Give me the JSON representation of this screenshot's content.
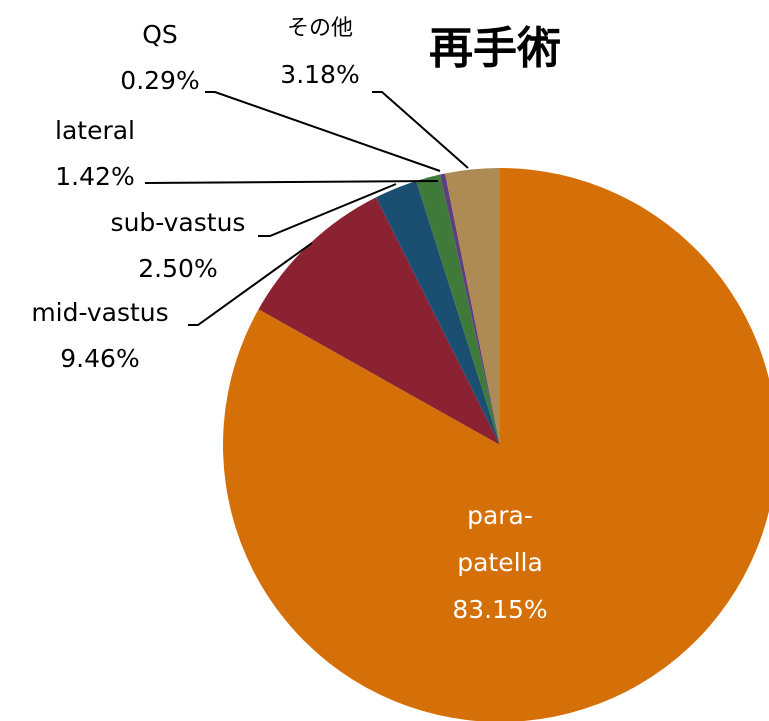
{
  "chart_data": {
    "type": "pie",
    "title": "再手術",
    "categories": [
      "para-patella",
      "mid-vastus",
      "sub-vastus",
      "lateral",
      "QS",
      "その他"
    ],
    "values": [
      83.15,
      9.46,
      2.5,
      1.42,
      0.29,
      3.18
    ],
    "value_labels": [
      "83.15%",
      "9.46%",
      "2.50%",
      "1.42%",
      "0.29%",
      "3.18%"
    ],
    "colors": [
      "#d57008",
      "#8b2232",
      "#1b4f72",
      "#3f7a3a",
      "#5e3f7e",
      "#ae8a55"
    ]
  }
}
